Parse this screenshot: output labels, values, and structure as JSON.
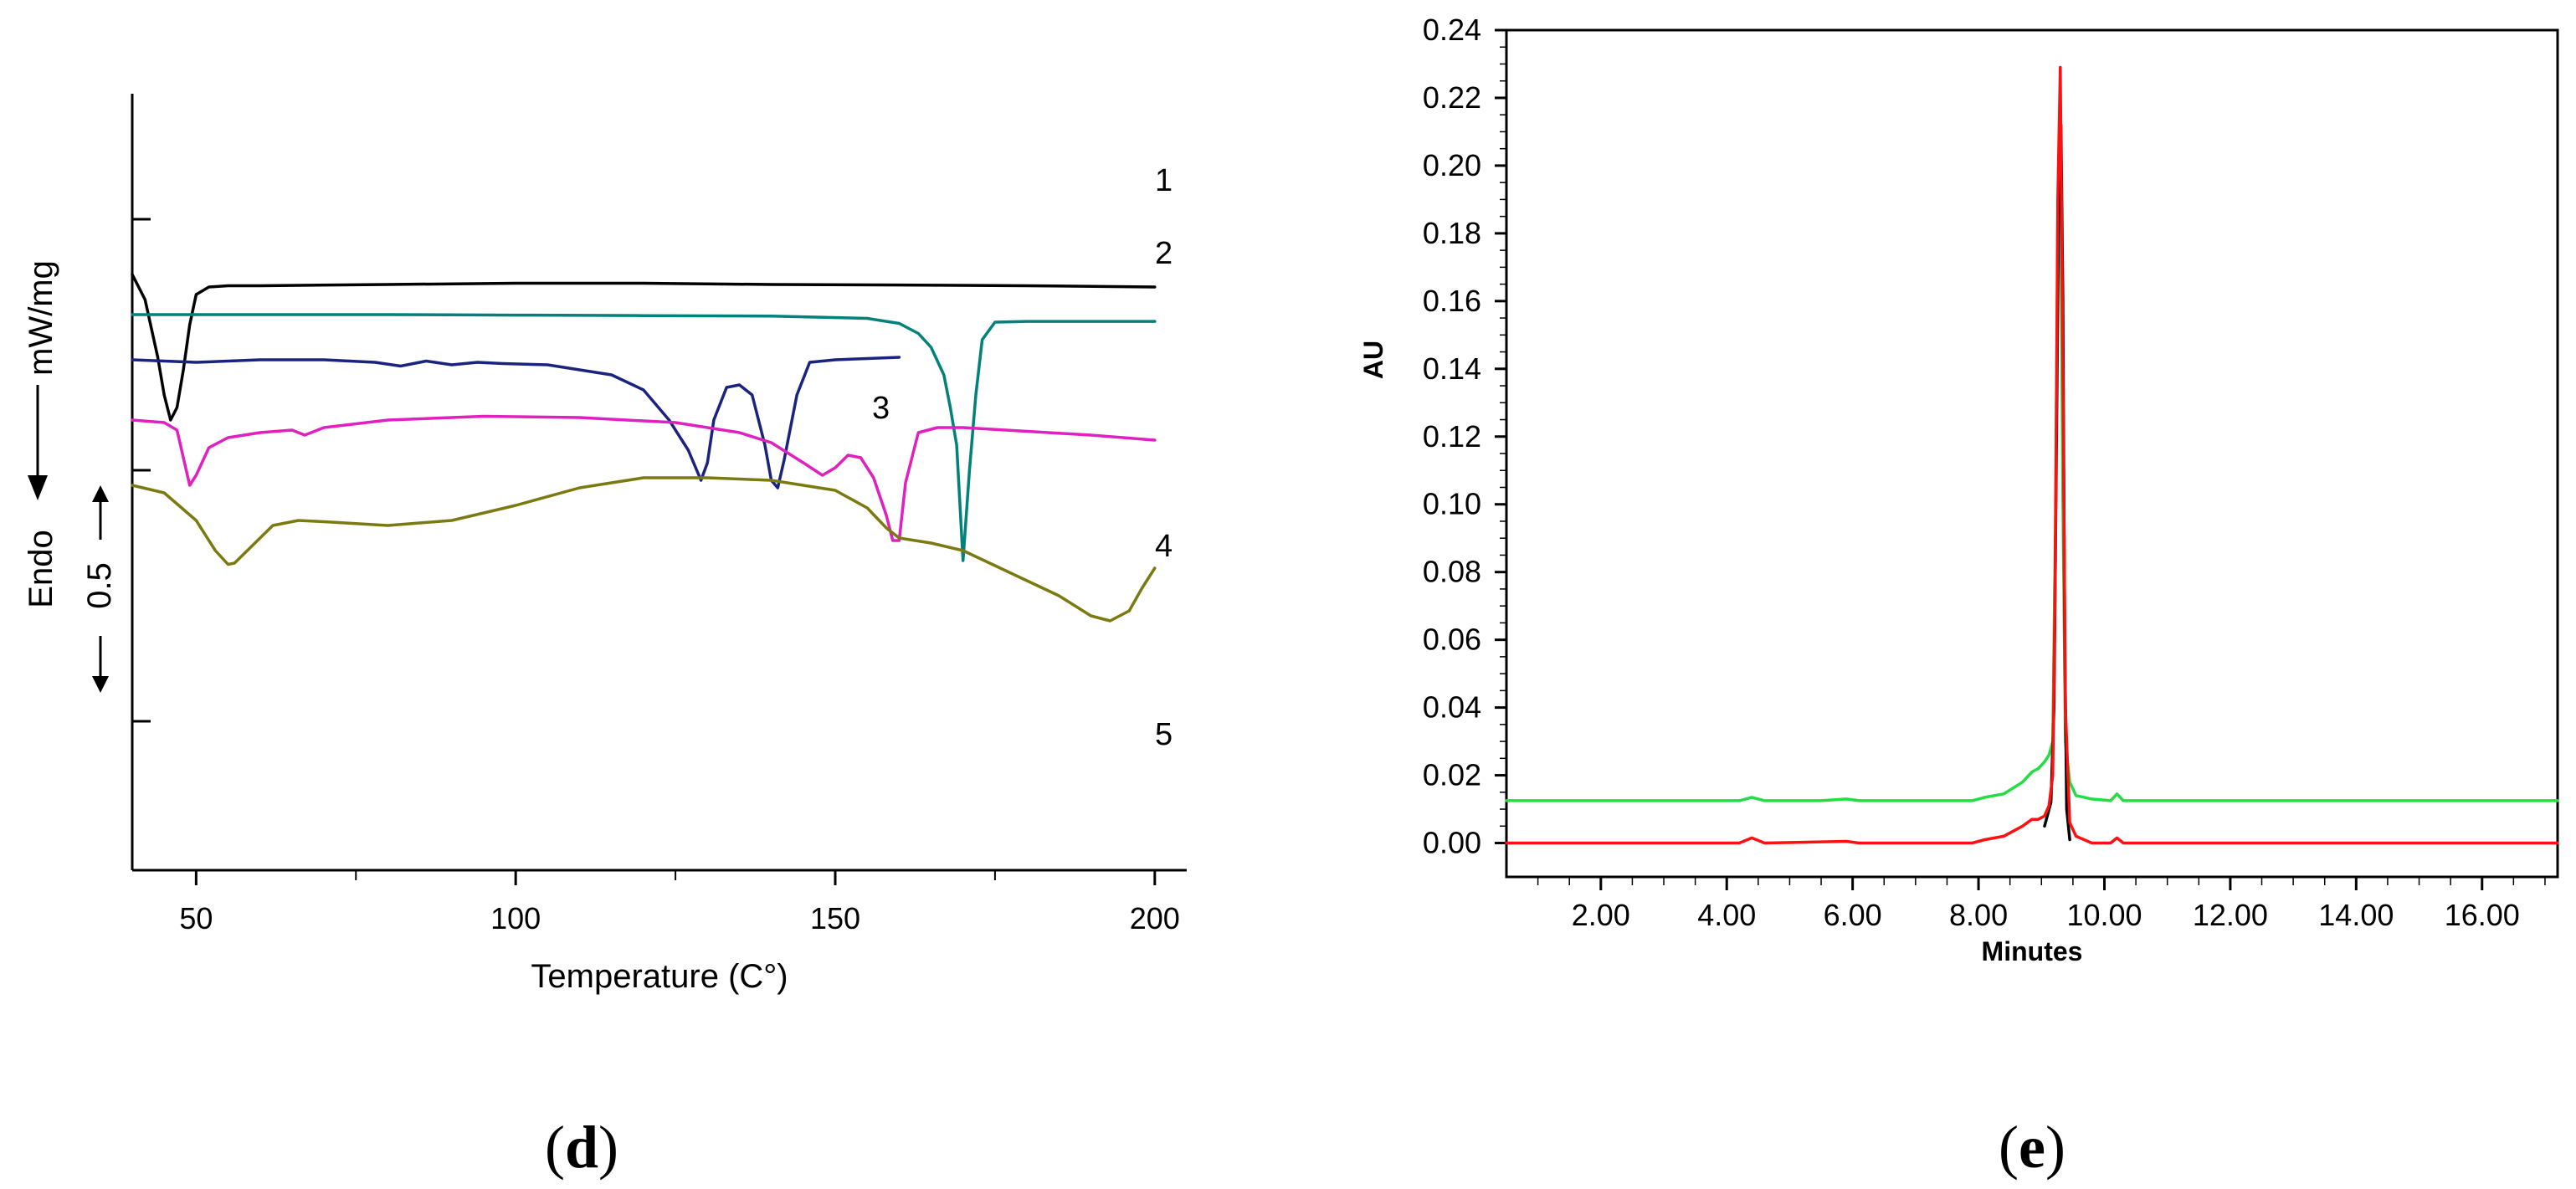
{
  "panels": {
    "d": "d",
    "e": "e"
  },
  "chart_data": [
    {
      "id": "dsc",
      "type": "line",
      "title": "",
      "xlabel": "Temperature (C°)",
      "ylabel_endo": "Endo",
      "ylabel_units": "mW/mg",
      "scale_bar_label": "0.5",
      "xlim": [
        40,
        205
      ],
      "xticks": [
        50,
        100,
        150,
        200
      ],
      "xtick_labels": [
        "50",
        "100",
        "150",
        "200"
      ],
      "series": [
        {
          "name": "1",
          "color": "#000000",
          "x": [
            40,
            42,
            44,
            45,
            46,
            47,
            48,
            49,
            50,
            52,
            55,
            60,
            80,
            100,
            120,
            140,
            160,
            180,
            200
          ],
          "y": [
            0.78,
            0.68,
            0.45,
            0.3,
            0.2,
            0.25,
            0.4,
            0.58,
            0.7,
            0.73,
            0.735,
            0.735,
            0.74,
            0.745,
            0.745,
            0.74,
            0.738,
            0.735,
            0.73
          ]
        },
        {
          "name": "2",
          "color": "#00827a",
          "x": [
            40,
            60,
            80,
            100,
            120,
            140,
            155,
            160,
            163,
            165,
            167,
            168,
            169,
            170,
            171,
            172,
            173,
            175,
            180,
            190,
            200
          ],
          "y": [
            0.62,
            0.62,
            0.62,
            0.618,
            0.616,
            0.614,
            0.605,
            0.585,
            0.545,
            0.49,
            0.38,
            0.25,
            0.1,
            -0.36,
            0.0,
            0.3,
            0.52,
            0.59,
            0.593,
            0.593,
            0.593
          ]
        },
        {
          "name": "3",
          "color": "#1a237e",
          "x": [
            40,
            50,
            60,
            70,
            78,
            82,
            86,
            90,
            94,
            98,
            105,
            115,
            120,
            124,
            127,
            129,
            130,
            131,
            133,
            135,
            137,
            139,
            140,
            141,
            142,
            144,
            146,
            150,
            155,
            160
          ],
          "y": [
            0.44,
            0.43,
            0.44,
            0.44,
            0.43,
            0.415,
            0.435,
            0.42,
            0.43,
            0.425,
            0.42,
            0.38,
            0.32,
            0.2,
            0.08,
            -0.04,
            0.03,
            0.2,
            0.33,
            0.34,
            0.3,
            0.1,
            -0.04,
            -0.07,
            0.04,
            0.3,
            0.43,
            0.44,
            0.445,
            0.45
          ]
        },
        {
          "name": "4",
          "color": "#e020c0",
          "x": [
            40,
            45,
            47,
            48,
            49,
            50,
            52,
            55,
            60,
            65,
            67,
            70,
            80,
            95,
            110,
            125,
            135,
            140,
            145,
            148,
            150,
            152,
            154,
            156,
            158,
            159,
            160,
            161,
            163,
            166,
            170,
            180,
            190,
            200
          ],
          "y": [
            0.2,
            0.19,
            0.16,
            0.05,
            -0.06,
            -0.02,
            0.09,
            0.13,
            0.15,
            0.16,
            0.14,
            0.17,
            0.2,
            0.215,
            0.21,
            0.19,
            0.15,
            0.11,
            0.03,
            -0.02,
            0.01,
            0.06,
            0.05,
            -0.03,
            -0.18,
            -0.28,
            -0.28,
            -0.05,
            0.15,
            0.17,
            0.17,
            0.155,
            0.14,
            0.12
          ]
        },
        {
          "name": "5",
          "color": "#7a7a10",
          "x": [
            40,
            45,
            50,
            53,
            55,
            56,
            58,
            62,
            66,
            70,
            80,
            90,
            100,
            110,
            120,
            130,
            140,
            150,
            155,
            158,
            160,
            165,
            170,
            175,
            180,
            185,
            190,
            193,
            196,
            198,
            200
          ],
          "y": [
            -0.06,
            -0.09,
            -0.2,
            -0.32,
            -0.375,
            -0.37,
            -0.32,
            -0.22,
            -0.2,
            -0.205,
            -0.22,
            -0.2,
            -0.14,
            -0.07,
            -0.03,
            -0.03,
            -0.04,
            -0.08,
            -0.15,
            -0.23,
            -0.27,
            -0.29,
            -0.32,
            -0.38,
            -0.44,
            -0.5,
            -0.58,
            -0.6,
            -0.56,
            -0.47,
            -0.39
          ]
        }
      ]
    },
    {
      "id": "hplc",
      "type": "line",
      "title": "",
      "xlabel": "Minutes",
      "ylabel": "AU",
      "xlim": [
        0.5,
        17.2
      ],
      "ylim": [
        -0.01,
        0.24
      ],
      "xticks": [
        2,
        4,
        6,
        8,
        10,
        12,
        14,
        16
      ],
      "xtick_labels": [
        "2.00",
        "4.00",
        "6.00",
        "8.00",
        "10.00",
        "12.00",
        "14.00",
        "16.00"
      ],
      "yticks": [
        0,
        0.02,
        0.04,
        0.06,
        0.08,
        0.1,
        0.12,
        0.14,
        0.16,
        0.18,
        0.2,
        0.22,
        0.24
      ],
      "ytick_labels": [
        "0.00",
        "0.02",
        "0.04",
        "0.06",
        "0.08",
        "0.10",
        "0.12",
        "0.14",
        "0.16",
        "0.18",
        "0.20",
        "0.22",
        "0.24"
      ],
      "series": [
        {
          "name": "green",
          "color": "#22dd44",
          "x": [
            0.5,
            2,
            3.5,
            4.2,
            4.4,
            4.6,
            5.5,
            5.9,
            6.1,
            7.9,
            8.1,
            8.4,
            8.7,
            8.85,
            8.95,
            9.05,
            9.12,
            9.18,
            9.22,
            9.26,
            9.3,
            9.34,
            9.38,
            9.45,
            9.55,
            9.8,
            10.1,
            10.2,
            10.3,
            11,
            12,
            14,
            16,
            17.2
          ],
          "y": [
            0.0125,
            0.0125,
            0.0125,
            0.0125,
            0.0135,
            0.0125,
            0.0125,
            0.013,
            0.0125,
            0.0125,
            0.0135,
            0.0145,
            0.018,
            0.021,
            0.022,
            0.024,
            0.026,
            0.03,
            0.09,
            0.18,
            0.205,
            0.1,
            0.03,
            0.018,
            0.014,
            0.013,
            0.0125,
            0.0145,
            0.0125,
            0.0125,
            0.0125,
            0.0125,
            0.0125,
            0.0125
          ]
        },
        {
          "name": "black",
          "color": "#000000",
          "x": [
            9.05,
            9.15,
            9.2,
            9.24,
            9.28,
            9.31,
            9.34,
            9.37,
            9.4,
            9.45
          ],
          "y": [
            0.005,
            0.012,
            0.04,
            0.12,
            0.2,
            0.212,
            0.16,
            0.06,
            0.01,
            0.001
          ]
        },
        {
          "name": "red",
          "color": "#ff1010",
          "x": [
            0.5,
            2,
            4.2,
            4.4,
            4.6,
            5.9,
            6.1,
            7.9,
            8.1,
            8.4,
            8.7,
            8.85,
            8.95,
            9.05,
            9.12,
            9.18,
            9.22,
            9.26,
            9.3,
            9.34,
            9.38,
            9.45,
            9.55,
            9.8,
            10.1,
            10.2,
            10.3,
            11,
            12,
            14,
            16,
            17.2
          ],
          "y": [
            0.0,
            0.0,
            0.0,
            0.0015,
            0.0,
            0.0005,
            0.0,
            0.0,
            0.001,
            0.002,
            0.005,
            0.007,
            0.007,
            0.008,
            0.011,
            0.02,
            0.08,
            0.19,
            0.229,
            0.14,
            0.04,
            0.006,
            0.002,
            0.0,
            0.0,
            0.0015,
            0.0,
            0.0,
            0.0,
            0.0,
            0.0,
            0.0
          ]
        }
      ]
    }
  ]
}
